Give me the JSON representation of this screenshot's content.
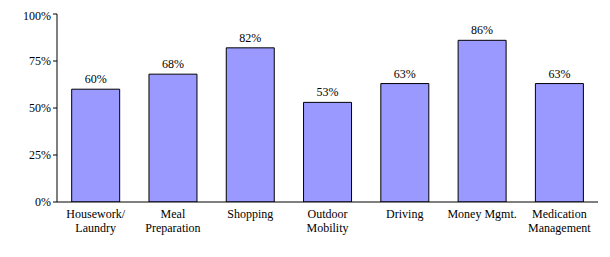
{
  "chart_data": {
    "type": "bar",
    "categories": [
      "Housework/ Laundry",
      "Meal Preparation",
      "Shopping",
      "Outdoor Mobility",
      "Driving",
      "Money  Mgmt.",
      "Medication Management"
    ],
    "values": [
      60,
      68,
      82,
      53,
      63,
      86,
      63
    ],
    "value_labels": [
      "60%",
      "68%",
      "82%",
      "53%",
      "63%",
      "86%",
      "63%"
    ],
    "data_labels": true,
    "color": "#9999ff",
    "ylim": [
      0,
      100
    ],
    "yticks": [
      {
        "value": 0,
        "label": "0%"
      },
      {
        "value": 25,
        "label": "25%"
      },
      {
        "value": 50,
        "label": "50%"
      },
      {
        "value": 75,
        "label": "75%"
      },
      {
        "value": 100,
        "label": "100%"
      }
    ],
    "grid": false
  }
}
